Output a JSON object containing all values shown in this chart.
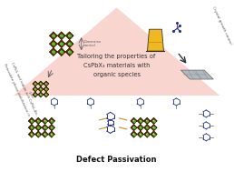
{
  "bg_color": "#ffffff",
  "triangle_color": "#f9d5cf",
  "center_text_line1": "Tailoring the properties of",
  "center_text_line2": "CsPbX₃ materials with",
  "center_text_line3": "organic species",
  "left_label_line1": "Perovskite phase stabilization in",
  "left_label_line2": "CsPbI₃ and iodide-rich CsPbI₃₂Br₄",
  "right_label": "Crystal growth control",
  "bottom_label": "Defect Passivation",
  "perovskite_brown": "#5a3a00",
  "perovskite_dark": "#2a1800",
  "perovskite_green": "#55bb22",
  "perovskite_white": "#ffffff",
  "crystal_color": "#aaaaaa",
  "beaker_yellow": "#f0b820",
  "organic_blue": "#223388",
  "organic_bond": "#c89030"
}
